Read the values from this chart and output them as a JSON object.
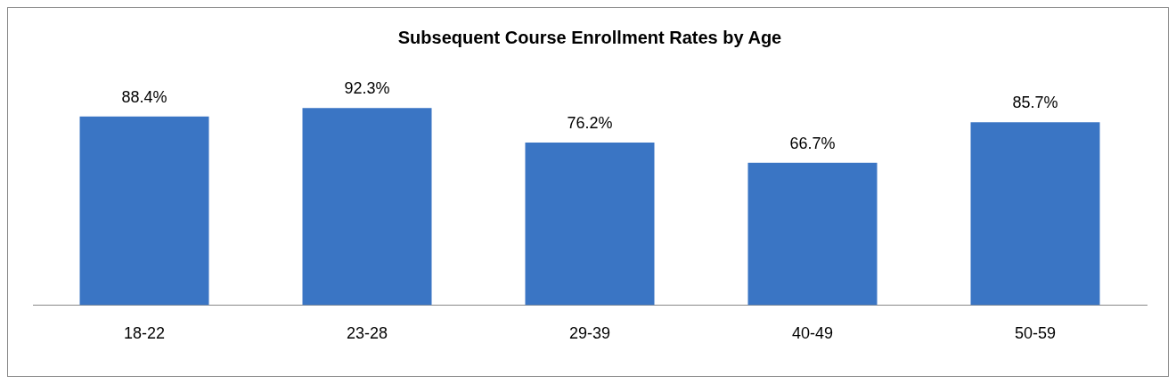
{
  "chart_data": {
    "type": "bar",
    "title": "Subsequent Course Enrollment Rates by Age",
    "categories": [
      "18-22",
      "23-28",
      "29-39",
      "40-49",
      "50-59"
    ],
    "values": [
      88.4,
      92.3,
      76.2,
      66.7,
      85.7
    ],
    "value_labels": [
      "88.4%",
      "92.3%",
      "76.2%",
      "66.7%",
      "85.7%"
    ],
    "color": "#3a75c4",
    "grid": false,
    "legend": false,
    "tick_labels": "x"
  }
}
